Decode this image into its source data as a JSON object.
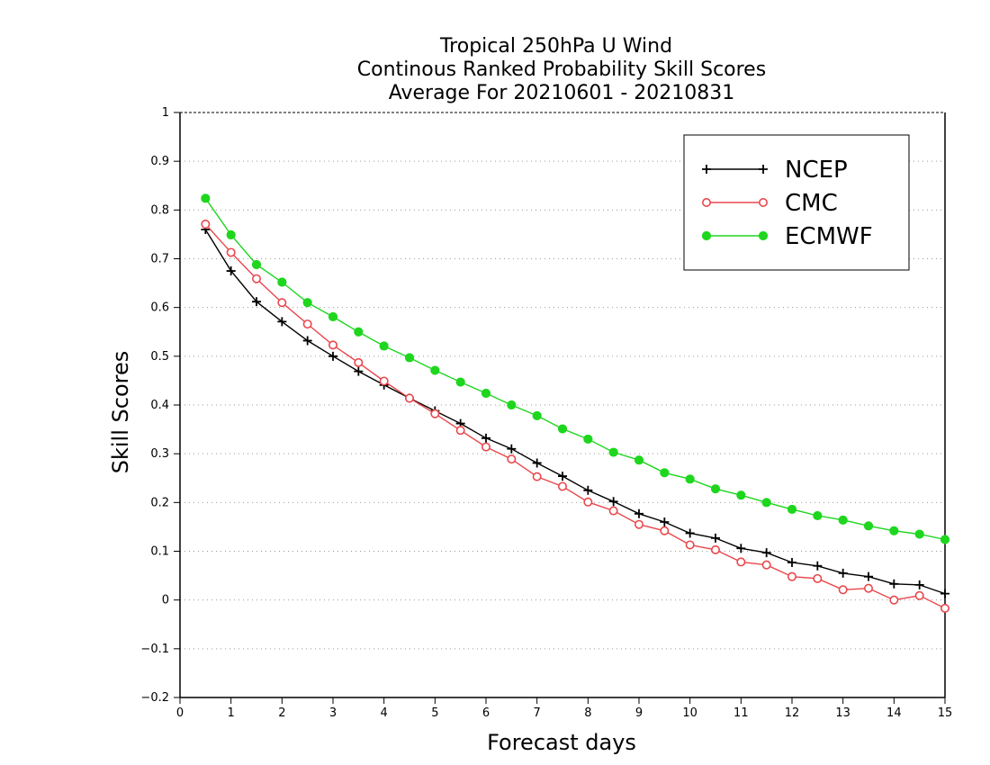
{
  "chart_data": {
    "type": "line",
    "title_lines": [
      "Tropical 250hPa U Wind",
      "Continous Ranked Probability Skill Scores",
      "Average For 20210601 - 20210831"
    ],
    "xlabel": "Forecast days",
    "ylabel": "Skill Scores",
    "xlim": [
      0,
      15
    ],
    "ylim": [
      -0.2,
      1
    ],
    "x_ticks": [
      0,
      1,
      2,
      3,
      4,
      5,
      6,
      7,
      8,
      9,
      10,
      11,
      12,
      13,
      14,
      15
    ],
    "y_ticks": [
      -0.2,
      -0.1,
      0,
      0.1,
      0.2,
      0.3,
      0.4,
      0.5,
      0.6,
      0.7,
      0.8,
      0.9,
      1
    ],
    "y_tick_labels": [
      "−0.2",
      "−0.1",
      "0",
      "0.1",
      "0.2",
      "0.3",
      "0.4",
      "0.5",
      "0.6",
      "0.7",
      "0.8",
      "0.9",
      "1"
    ],
    "grid": "horizontal dotted",
    "legend_position": "top-right",
    "x": [
      0.5,
      1,
      1.5,
      2,
      2.5,
      3,
      3.5,
      4,
      4.5,
      5,
      5.5,
      6,
      6.5,
      7,
      7.5,
      8,
      8.5,
      9,
      9.5,
      10,
      10.5,
      11,
      11.5,
      12,
      12.5,
      13,
      13.5,
      14,
      14.5,
      15
    ],
    "series": [
      {
        "name": "NCEP",
        "color": "#000000",
        "marker": "plus",
        "values": [
          0.76,
          0.675,
          0.612,
          0.571,
          0.532,
          0.5,
          0.469,
          0.441,
          0.414,
          0.388,
          0.362,
          0.332,
          0.31,
          0.281,
          0.254,
          0.225,
          0.202,
          0.177,
          0.16,
          0.137,
          0.127,
          0.106,
          0.097,
          0.077,
          0.07,
          0.055,
          0.048,
          0.033,
          0.031,
          0.013
        ]
      },
      {
        "name": "CMC",
        "color": "#e8474b",
        "marker": "open-circle",
        "values": [
          0.771,
          0.713,
          0.659,
          0.61,
          0.566,
          0.523,
          0.487,
          0.449,
          0.414,
          0.382,
          0.348,
          0.314,
          0.289,
          0.253,
          0.233,
          0.201,
          0.183,
          0.155,
          0.142,
          0.113,
          0.103,
          0.078,
          0.072,
          0.048,
          0.044,
          0.021,
          0.024,
          0.0,
          0.009,
          -0.017
        ]
      },
      {
        "name": "ECMWF",
        "color": "#1ed61e",
        "marker": "filled-circle",
        "values": [
          0.824,
          0.749,
          0.688,
          0.652,
          0.61,
          0.581,
          0.55,
          0.521,
          0.497,
          0.471,
          0.447,
          0.424,
          0.4,
          0.378,
          0.351,
          0.33,
          0.303,
          0.287,
          0.261,
          0.248,
          0.228,
          0.215,
          0.2,
          0.186,
          0.173,
          0.164,
          0.152,
          0.142,
          0.135,
          0.124
        ]
      }
    ]
  }
}
